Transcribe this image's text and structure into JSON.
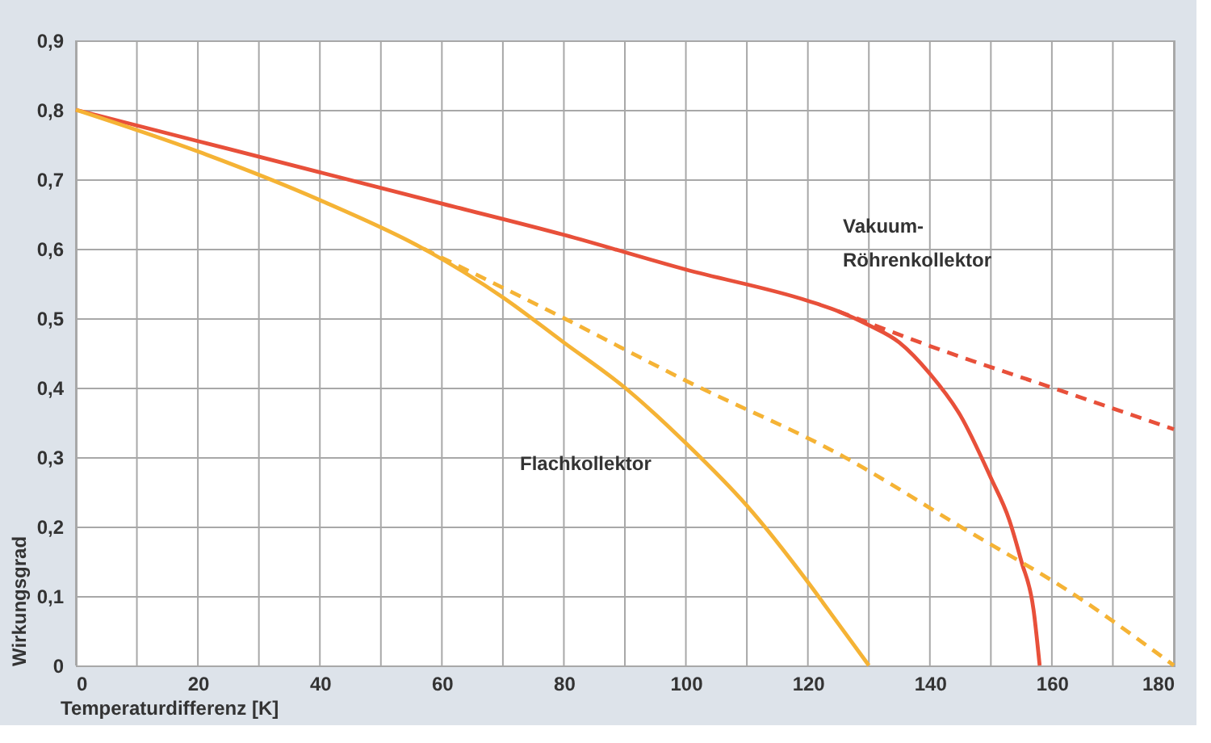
{
  "chart_data": {
    "type": "line",
    "xlabel": "Temperaturdifferenz [K]",
    "ylabel": "Wirkungsgrad",
    "xlim": [
      0,
      180
    ],
    "ylim": [
      0,
      0.9
    ],
    "xticks": [
      0,
      {
        "value": 10,
        "label": null
      },
      20,
      {
        "value": 30,
        "label": null
      },
      40,
      {
        "value": 50,
        "label": null
      },
      60,
      {
        "value": 70,
        "label": null
      },
      80,
      {
        "value": 90,
        "label": null
      },
      100,
      {
        "value": 110,
        "label": null
      },
      120,
      {
        "value": 130,
        "label": null
      },
      140,
      {
        "value": 150,
        "label": null
      },
      160,
      {
        "value": 170,
        "label": null
      },
      180
    ],
    "yticks": [
      0,
      {
        "value": 0.1,
        "label": "0,1"
      },
      {
        "value": 0.2,
        "label": "0,2"
      },
      {
        "value": 0.3,
        "label": "0,3"
      },
      {
        "value": 0.4,
        "label": "0,4"
      },
      {
        "value": 0.5,
        "label": "0,5"
      },
      {
        "value": 0.6,
        "label": "0,6"
      },
      {
        "value": 0.7,
        "label": "0,7"
      },
      {
        "value": 0.8,
        "label": "0,8"
      },
      {
        "value": 0.9,
        "label": "0,9"
      }
    ],
    "grid": true,
    "marker": "none",
    "series": [
      {
        "color": "#e8503a",
        "line_style": "solid",
        "x": [
          0,
          20,
          40,
          60,
          80,
          100,
          120,
          125,
          130,
          135,
          140,
          145,
          150,
          153,
          155,
          157,
          158
        ],
        "values": [
          0.8,
          0.755,
          0.71,
          0.665,
          0.62,
          0.57,
          0.525,
          0.51,
          0.49,
          0.465,
          0.42,
          0.36,
          0.27,
          0.21,
          0.15,
          0.08,
          0
        ]
      },
      {
        "color": "#e8503a",
        "line_style": "dashed",
        "x": [
          125,
          140,
          160,
          180
        ],
        "values": [
          0.51,
          0.46,
          0.4,
          0.34
        ]
      },
      {
        "color": "#f5b335",
        "line_style": "solid",
        "x": [
          0,
          20,
          40,
          57,
          70,
          80,
          90,
          100,
          110,
          120,
          125,
          130
        ],
        "values": [
          0.8,
          0.74,
          0.67,
          0.6,
          0.53,
          0.465,
          0.4,
          0.32,
          0.23,
          0.12,
          0.06,
          0
        ]
      },
      {
        "color": "#f5b335",
        "line_style": "dashed",
        "x": [
          57,
          80,
          100,
          126,
          145,
          164,
          180
        ],
        "values": [
          0.6,
          0.5,
          0.41,
          0.3,
          0.2,
          0.1,
          0
        ]
      }
    ],
    "annotations": [
      "Vakuum-\nRöhrenkollektor",
      "Flachkollektor"
    ]
  }
}
